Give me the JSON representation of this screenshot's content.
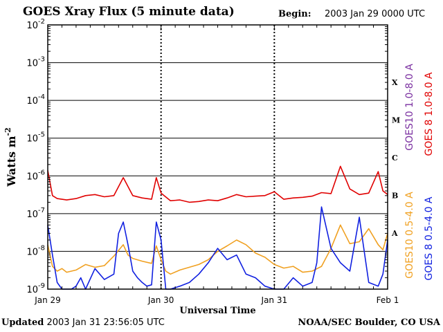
{
  "header": {
    "title": "GOES Xray Flux (5 minute data)",
    "begin_label": "Begin:",
    "begin_value": "2003 Jan 29 0000 UTC"
  },
  "footer": {
    "updated_label": "Updated",
    "updated_value": "2003 Jan 31 23:56:05 UTC",
    "credit": "NOAA/SEC Boulder, CO USA"
  },
  "chart_data": {
    "type": "line",
    "title": "GOES Xray Flux (5 minute data)",
    "xlabel": "Universal Time",
    "ylabel": "Watts m",
    "ylabel_superscript": "-2",
    "y_scale": "log",
    "ylim": [
      1e-09,
      0.01
    ],
    "xlim": [
      "2003-01-29T00:00Z",
      "2003-02-01T00:00Z"
    ],
    "x_ticks": [
      "Jan 29",
      "Jan 30",
      "Jan 31",
      "Feb 1"
    ],
    "y_ticks": [
      {
        "value": 1e-09,
        "label": "10",
        "exp": "-9"
      },
      {
        "value": 1e-08,
        "label": "10",
        "exp": "-8"
      },
      {
        "value": 1e-07,
        "label": "10",
        "exp": "-7"
      },
      {
        "value": 1e-06,
        "label": "10",
        "exp": "-6"
      },
      {
        "value": 1e-05,
        "label": "10",
        "exp": "-5"
      },
      {
        "value": 0.0001,
        "label": "10",
        "exp": "-4"
      },
      {
        "value": 0.001,
        "label": "10",
        "exp": "-3"
      },
      {
        "value": 0.01,
        "label": "10",
        "exp": "-2"
      }
    ],
    "flare_classes": [
      {
        "label": "X",
        "min": 0.0001
      },
      {
        "label": "M",
        "min": 1e-05
      },
      {
        "label": "C",
        "min": 1e-06
      },
      {
        "label": "B",
        "min": 1e-07
      },
      {
        "label": "A",
        "min": 1e-08
      }
    ],
    "grid": true,
    "legend": [
      {
        "name": "GOES10 1.0-8.0 A",
        "color": "#7a2fa0",
        "position": "right-outer"
      },
      {
        "name": "GOES 8 1.0-8.0 A",
        "color": "#e00000",
        "position": "right-outer"
      },
      {
        "name": "GOES10 0.5-4.0 A",
        "color": "#f0a020",
        "position": "right-outer"
      },
      {
        "name": "GOES 8 0.5-4.0 A",
        "color": "#1020e0",
        "position": "right-outer"
      }
    ],
    "series": [
      {
        "name": "GOES 8 1.0-8.0 A",
        "color": "#e00000",
        "x_hours": [
          0,
          1,
          2,
          3,
          4,
          6,
          8,
          10,
          12,
          14,
          16,
          18,
          20,
          22,
          23,
          24,
          26,
          28,
          30,
          32,
          34,
          36,
          38,
          40,
          42,
          44,
          46,
          48,
          50,
          52,
          54,
          56,
          58,
          60,
          62,
          64,
          66,
          68,
          70,
          71,
          72
        ],
        "values": [
          1.4e-06,
          3e-07,
          2.5e-07,
          2.4e-07,
          2.3e-07,
          2.5e-07,
          3e-07,
          3.2e-07,
          2.8e-07,
          3e-07,
          9e-07,
          3e-07,
          2.6e-07,
          2.4e-07,
          9e-07,
          3.5e-07,
          2.2e-07,
          2.3e-07,
          2e-07,
          2.1e-07,
          2.3e-07,
          2.2e-07,
          2.6e-07,
          3.2e-07,
          2.8e-07,
          2.9e-07,
          3e-07,
          3.8e-07,
          2.4e-07,
          2.6e-07,
          2.7e-07,
          2.9e-07,
          3.6e-07,
          3.4e-07,
          1.8e-06,
          4.5e-07,
          3.2e-07,
          3.5e-07,
          1.3e-06,
          4e-07,
          3.2e-07
        ]
      },
      {
        "name": "GOES10 0.5-4.0 A",
        "color": "#f0a020",
        "x_hours": [
          0,
          1,
          2,
          3,
          4,
          6,
          8,
          10,
          12,
          14,
          16,
          17,
          18,
          20,
          22,
          23,
          24,
          25,
          26,
          28,
          30,
          32,
          34,
          36,
          38,
          40,
          42,
          44,
          46,
          48,
          50,
          52,
          54,
          56,
          58,
          60,
          62,
          64,
          66,
          68,
          70,
          71,
          72
        ],
        "values": [
          1.5e-08,
          4e-09,
          3e-09,
          3.5e-09,
          2.8e-09,
          3.2e-09,
          4.5e-09,
          3.8e-09,
          4.2e-09,
          7.5e-09,
          1.5e-08,
          8e-09,
          6.5e-09,
          5.5e-09,
          4.8e-09,
          1.4e-08,
          6e-09,
          3e-09,
          2.5e-09,
          3.2e-09,
          3.8e-09,
          4.5e-09,
          6e-09,
          1e-08,
          1.4e-08,
          2e-08,
          1.5e-08,
          9e-09,
          7e-09,
          4.5e-09,
          3.6e-09,
          4e-09,
          2.8e-09,
          3e-09,
          4e-09,
          1.2e-08,
          5e-08,
          1.6e-08,
          1.8e-08,
          4e-08,
          1.5e-08,
          1.1e-08,
          3e-08
        ]
      },
      {
        "name": "GOES 8 0.5-4.0 A",
        "color": "#1020e0",
        "x_hours": [
          0,
          1,
          2,
          3,
          4,
          5,
          6,
          7,
          8,
          10,
          12,
          14,
          15,
          16,
          17,
          18,
          19,
          20,
          21,
          22,
          23,
          24,
          25,
          26,
          28,
          30,
          32,
          34,
          36,
          38,
          40,
          42,
          44,
          46,
          48,
          50,
          52,
          54,
          56,
          57,
          58,
          60,
          62,
          64,
          66,
          68,
          70,
          71,
          72
        ],
        "values": [
          5e-08,
          8e-09,
          1.5e-09,
          1e-09,
          1e-09,
          1e-09,
          1.2e-09,
          2e-09,
          1e-09,
          3.5e-09,
          1.8e-09,
          2.5e-09,
          3e-08,
          6e-08,
          1.5e-08,
          3e-09,
          2e-09,
          1.5e-09,
          1.2e-09,
          1.3e-09,
          6e-08,
          2e-08,
          1e-09,
          1e-09,
          1.2e-09,
          1.5e-09,
          2.5e-09,
          5e-09,
          1.2e-08,
          6e-09,
          8e-09,
          2.5e-09,
          2e-09,
          1.2e-09,
          1e-09,
          1e-09,
          2e-09,
          1.2e-09,
          1.5e-09,
          5e-09,
          1.5e-07,
          1.2e-08,
          5e-09,
          3e-09,
          8e-08,
          1.5e-09,
          1.2e-09,
          2.5e-09,
          2e-08
        ]
      }
    ]
  }
}
